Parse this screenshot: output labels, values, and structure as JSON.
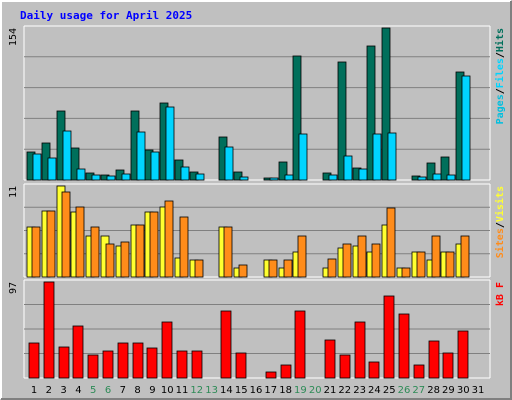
{
  "chart_data": {
    "type": "bar",
    "title": "Daily usage for April 2025",
    "colors": {
      "background": "#C0C0C0",
      "title": "#0000FF",
      "hits": "#006F5B",
      "files": "#00D4FF",
      "pages": "#00BFDF",
      "visits": "#FFFF30",
      "sites": "#FF8C1A",
      "kbytes": "#FF0000",
      "weekend_label": "#2E8B57",
      "weekday_label": "#000000"
    },
    "categories": [
      "1",
      "2",
      "3",
      "4",
      "5",
      "6",
      "7",
      "8",
      "9",
      "10",
      "11",
      "12",
      "13",
      "14",
      "15",
      "16",
      "17",
      "18",
      "19",
      "20",
      "21",
      "22",
      "23",
      "24",
      "25",
      "26",
      "27",
      "28",
      "29",
      "30",
      "31"
    ],
    "weekend_days": [
      "5",
      "6",
      "12",
      "13",
      "19",
      "20",
      "26",
      "27"
    ],
    "panels": [
      {
        "name": "hits-files-pages",
        "scale_max_label": "154",
        "ylim": [
          0,
          154
        ],
        "legend": [
          {
            "text": "Pages",
            "color_key": "pages"
          },
          {
            "text": "/",
            "color_key": "weekday_label"
          },
          {
            "text": "Files",
            "color_key": "files"
          },
          {
            "text": "/",
            "color_key": "weekday_label"
          },
          {
            "text": "Hits",
            "color_key": "hits"
          }
        ],
        "series": [
          {
            "name": "Hits",
            "color_key": "hits",
            "values": [
              28,
              37,
              70,
              32,
              7,
              5,
              10,
              70,
              30,
              78,
              20,
              8,
              0,
              44,
              8,
              0,
              2,
              18,
              126,
              0,
              7,
              120,
              12,
              136,
              154,
              0,
              4,
              17,
              23,
              109,
              0
            ]
          },
          {
            "name": "Files",
            "color_key": "files",
            "values": [
              26,
              22,
              50,
              11,
              5,
              4,
              6,
              49,
              28,
              74,
              13,
              6,
              0,
              33,
              3,
              0,
              2,
              5,
              47,
              0,
              5,
              24,
              11,
              47,
              48,
              0,
              3,
              6,
              5,
              105,
              0
            ]
          },
          {
            "name": "Pages",
            "color_key": "pages",
            "values": [
              0,
              0,
              0,
              0,
              0,
              0,
              0,
              0,
              0,
              0,
              0,
              0,
              0,
              0,
              0,
              0,
              0,
              0,
              0,
              0,
              0,
              0,
              0,
              0,
              0,
              0,
              0,
              0,
              0,
              0,
              0
            ]
          }
        ]
      },
      {
        "name": "visits-sites",
        "scale_max_label": "11",
        "ylim": [
          0,
          11
        ],
        "legend": [
          {
            "text": "Sites",
            "color_key": "sites"
          },
          {
            "text": "/",
            "color_key": "weekday_label"
          },
          {
            "text": "Visits",
            "color_key": "visits"
          }
        ],
        "series": [
          {
            "name": "Visits",
            "color_key": "visits",
            "values": [
              6.1,
              8.0,
              11.0,
              7.8,
              5.0,
              5.0,
              3.8,
              6.3,
              7.8,
              8.5,
              2.3,
              2.0,
              0,
              6.1,
              1.1,
              0,
              2.0,
              1.1,
              3.0,
              0,
              1.1,
              3.5,
              3.8,
              3.0,
              6.3,
              1.1,
              3.0,
              2.0,
              3.0,
              4.0,
              0
            ]
          },
          {
            "name": "Sites",
            "color_key": "sites",
            "values": [
              6.1,
              8.0,
              10.3,
              8.5,
              6.1,
              4.0,
              4.2,
              6.3,
              7.8,
              9.2,
              7.2,
              2.0,
              0,
              6.1,
              1.5,
              0,
              2.0,
              2.0,
              5.0,
              0,
              2.2,
              4.0,
              5.0,
              4.0,
              8.3,
              1.1,
              3.0,
              5.0,
              3.0,
              5.0,
              0
            ]
          }
        ]
      },
      {
        "name": "kbytes",
        "scale_max_label": "97",
        "ylim": [
          0,
          97
        ],
        "legend": [
          {
            "text": "kB F",
            "color_key": "kbytes"
          }
        ],
        "series": [
          {
            "name": "kB F",
            "color_key": "kbytes",
            "values": [
              35,
              97,
              31,
              53,
              23,
              27,
              35,
              35,
              30,
              57,
              27,
              27,
              0,
              68,
              25,
              0,
              6,
              13,
              68,
              0,
              38,
              23,
              57,
              16,
              83,
              65,
              13,
              37,
              25,
              47,
              0
            ]
          }
        ]
      }
    ]
  }
}
